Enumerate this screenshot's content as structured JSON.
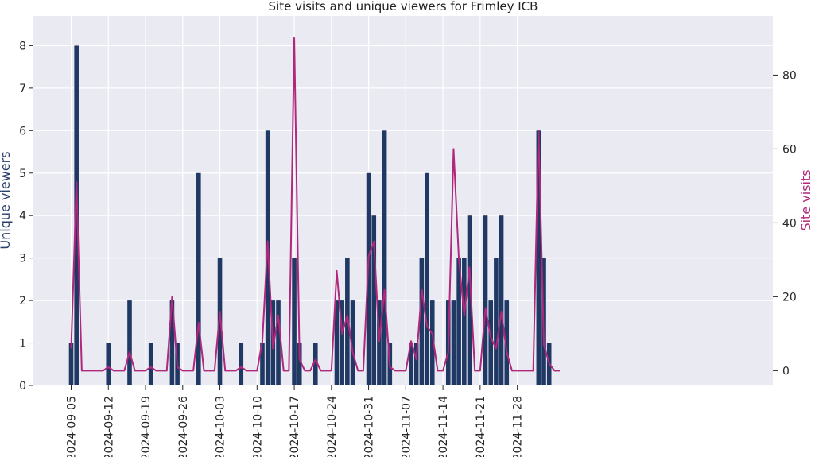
{
  "chart_data": {
    "type": "bar+line",
    "title": "Site visits and unique viewers for Frimley ICB",
    "ylabel_left": "Unique viewers",
    "ylabel_right": "Site visits",
    "x_start_date": "2024-09-05",
    "x_tick_labels": [
      "2024-09-05",
      "2024-09-12",
      "2024-09-19",
      "2024-09-26",
      "2024-10-03",
      "2024-10-10",
      "2024-10-17",
      "2024-10-24",
      "2024-10-31",
      "2024-11-07",
      "2024-11-14",
      "2024-11-21",
      "2024-11-28"
    ],
    "y_left_ticks": [
      0,
      1,
      2,
      3,
      4,
      5,
      6,
      7,
      8
    ],
    "y_right_ticks": [
      0,
      20,
      40,
      60,
      80
    ],
    "ylim_left": [
      0,
      8.7
    ],
    "ylim_right": [
      -4,
      96
    ],
    "grid": true,
    "series": [
      {
        "name": "Unique viewers",
        "type": "bar",
        "color": "#1f3864",
        "values": [
          1,
          8,
          0,
          0,
          0,
          0,
          0,
          1,
          0,
          0,
          0,
          2,
          0,
          0,
          0,
          1,
          0,
          0,
          0,
          2,
          1,
          0,
          0,
          0,
          5,
          0,
          0,
          0,
          3,
          0,
          0,
          0,
          1,
          0,
          0,
          0,
          1,
          6,
          2,
          2,
          0,
          0,
          3,
          1,
          0,
          0,
          1,
          0,
          0,
          0,
          2,
          2,
          3,
          2,
          0,
          0,
          5,
          4,
          2,
          6,
          1,
          0,
          0,
          0,
          1,
          1,
          3,
          5,
          2,
          0,
          0,
          2,
          2,
          3,
          3,
          4,
          0,
          0,
          4,
          2,
          3,
          4,
          2,
          0,
          0,
          0,
          0,
          0,
          6,
          3,
          1,
          0,
          0
        ]
      },
      {
        "name": "Site visits",
        "type": "line",
        "color": "#b0277c",
        "values": [
          6,
          51,
          0,
          0,
          0,
          0,
          0,
          1,
          0,
          0,
          0,
          5,
          0,
          0,
          0,
          1,
          0,
          0,
          0,
          20,
          1,
          0,
          0,
          0,
          13,
          0,
          0,
          0,
          16,
          0,
          0,
          0,
          1,
          0,
          0,
          0,
          8,
          35,
          6,
          15,
          0,
          0,
          90,
          3,
          0,
          0,
          3,
          0,
          0,
          0,
          27,
          10,
          15,
          5,
          0,
          0,
          31,
          35,
          8,
          22,
          1,
          0,
          0,
          0,
          8,
          3,
          22,
          12,
          10,
          0,
          0,
          5,
          60,
          30,
          15,
          28,
          0,
          0,
          17,
          9,
          6,
          16,
          5,
          0,
          0,
          0,
          0,
          0,
          65,
          7,
          2,
          0,
          0
        ]
      }
    ]
  }
}
